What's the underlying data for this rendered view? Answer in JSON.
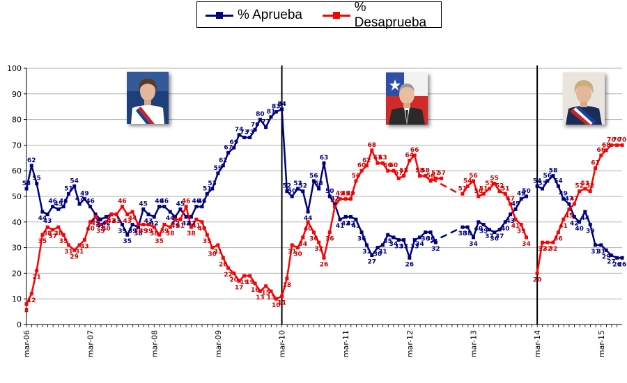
{
  "chart_data": {
    "type": "line",
    "title": "",
    "xlabel": "",
    "ylabel": "",
    "ylim": [
      0,
      100
    ],
    "yticks": [
      0,
      10,
      20,
      30,
      40,
      50,
      60,
      70,
      80,
      90,
      100
    ],
    "x_range": [
      2006.17,
      2015.5
    ],
    "grid": true,
    "legend_position": "top-center",
    "tick_labels": [
      {
        "label": "mar-06",
        "x": 2006.17
      },
      {
        "label": "mar-07",
        "x": 2007.17
      },
      {
        "label": "mar-08",
        "x": 2008.17
      },
      {
        "label": "mar-09",
        "x": 2009.17
      },
      {
        "label": "mar-10",
        "x": 2010.17
      },
      {
        "label": "mar-11",
        "x": 2011.17
      },
      {
        "label": "mar-12",
        "x": 2012.17
      },
      {
        "label": "mar-13",
        "x": 2013.17
      },
      {
        "label": "mar-14",
        "x": 2014.17
      },
      {
        "label": "mar-15",
        "x": 2015.17
      }
    ],
    "period_lines": [
      2010.17,
      2014.17
    ],
    "gap_segments": [
      {
        "series": 0,
        "from": [
          2012.5,
          32
        ],
        "to": [
          2013.0,
          38
        ]
      },
      {
        "series": 1,
        "from": [
          2012.5,
          57
        ],
        "to": [
          2012.95,
          51
        ]
      }
    ],
    "series": [
      {
        "name": "% Aprueba",
        "color": "#000080",
        "label_color": "#000080",
        "segments": [
          [
            [
              2006.17,
              53
            ],
            [
              2006.25,
              62
            ],
            [
              2006.33,
              55
            ],
            [
              2006.42,
              44
            ],
            [
              2006.5,
              43
            ],
            [
              2006.58,
              46
            ],
            [
              2006.67,
              45
            ],
            [
              2006.75,
              46
            ],
            [
              2006.83,
              51
            ],
            [
              2006.92,
              54
            ],
            [
              2007.0,
              47
            ],
            [
              2007.08,
              49
            ],
            [
              2007.17,
              46
            ],
            [
              2007.25,
              43
            ],
            [
              2007.33,
              41
            ],
            [
              2007.42,
              42
            ],
            [
              2007.5,
              43
            ],
            [
              2007.58,
              43
            ],
            [
              2007.67,
              39
            ],
            [
              2007.75,
              35
            ],
            [
              2007.83,
              39
            ],
            [
              2007.92,
              38
            ],
            [
              2008.0,
              45
            ],
            [
              2008.08,
              43
            ],
            [
              2008.17,
              42
            ],
            [
              2008.25,
              46
            ],
            [
              2008.33,
              46
            ],
            [
              2008.42,
              44
            ],
            [
              2008.5,
              42
            ],
            [
              2008.58,
              45
            ],
            [
              2008.67,
              42
            ],
            [
              2008.75,
              42
            ],
            [
              2008.83,
              46
            ],
            [
              2008.92,
              46
            ],
            [
              2009.0,
              51
            ],
            [
              2009.08,
              53
            ],
            [
              2009.17,
              59
            ],
            [
              2009.25,
              62
            ],
            [
              2009.33,
              67
            ],
            [
              2009.42,
              69
            ],
            [
              2009.5,
              74
            ],
            [
              2009.58,
              73
            ],
            [
              2009.67,
              73
            ],
            [
              2009.75,
              76
            ],
            [
              2009.83,
              80
            ],
            [
              2009.92,
              77
            ],
            [
              2010.0,
              81
            ],
            [
              2010.08,
              83
            ],
            [
              2010.17,
              84
            ]
          ],
          [
            [
              2010.17,
              84
            ],
            [
              2010.25,
              52
            ],
            [
              2010.33,
              50
            ],
            [
              2010.42,
              53
            ],
            [
              2010.5,
              52
            ],
            [
              2010.58,
              44
            ],
            [
              2010.67,
              56
            ],
            [
              2010.75,
              53
            ],
            [
              2010.83,
              63
            ],
            [
              2010.92,
              50
            ],
            [
              2011.0,
              47
            ],
            [
              2011.08,
              41
            ],
            [
              2011.17,
              42
            ],
            [
              2011.25,
              42
            ],
            [
              2011.33,
              41
            ],
            [
              2011.42,
              36
            ],
            [
              2011.5,
              31
            ],
            [
              2011.58,
              27
            ],
            [
              2011.67,
              30
            ],
            [
              2011.75,
              31
            ],
            [
              2011.83,
              35
            ],
            [
              2011.92,
              34
            ],
            [
              2012.0,
              33
            ],
            [
              2012.08,
              33
            ],
            [
              2012.17,
              26
            ],
            [
              2012.25,
              33
            ],
            [
              2012.33,
              34
            ],
            [
              2012.42,
              36
            ],
            [
              2012.5,
              36
            ],
            [
              2012.58,
              32
            ]
          ],
          [
            [
              2013.0,
              38
            ],
            [
              2013.08,
              38
            ],
            [
              2013.17,
              34
            ],
            [
              2013.25,
              40
            ],
            [
              2013.33,
              39
            ],
            [
              2013.42,
              37
            ],
            [
              2013.5,
              36
            ],
            [
              2013.58,
              37
            ],
            [
              2013.67,
              40
            ],
            [
              2013.75,
              43
            ],
            [
              2013.83,
              45
            ],
            [
              2013.92,
              49
            ],
            [
              2014.0,
              50
            ]
          ],
          [
            [
              2014.17,
              54
            ],
            [
              2014.25,
              53
            ],
            [
              2014.33,
              56
            ],
            [
              2014.42,
              58
            ],
            [
              2014.5,
              54
            ],
            [
              2014.58,
              49
            ],
            [
              2014.67,
              47
            ],
            [
              2014.75,
              42
            ],
            [
              2014.83,
              40
            ],
            [
              2014.92,
              44
            ],
            [
              2015.0,
              39
            ],
            [
              2015.08,
              31
            ],
            [
              2015.17,
              31
            ],
            [
              2015.25,
              29
            ],
            [
              2015.33,
              27
            ],
            [
              2015.42,
              26
            ],
            [
              2015.5,
              26
            ]
          ]
        ]
      },
      {
        "name": "% Desaprueba",
        "color": "#ff0000",
        "label_color": "#cc0000",
        "segments": [
          [
            [
              2006.17,
              8
            ],
            [
              2006.25,
              12
            ],
            [
              2006.33,
              21
            ],
            [
              2006.42,
              35
            ],
            [
              2006.5,
              38
            ],
            [
              2006.58,
              37
            ],
            [
              2006.67,
              38
            ],
            [
              2006.75,
              35
            ],
            [
              2006.83,
              31
            ],
            [
              2006.92,
              29
            ],
            [
              2007.0,
              31
            ],
            [
              2007.08,
              33
            ],
            [
              2007.17,
              40
            ],
            [
              2007.25,
              42
            ],
            [
              2007.33,
              39
            ],
            [
              2007.42,
              40
            ],
            [
              2007.5,
              43
            ],
            [
              2007.58,
              43
            ],
            [
              2007.67,
              46
            ],
            [
              2007.75,
              43
            ],
            [
              2007.83,
              44
            ],
            [
              2007.92,
              39
            ],
            [
              2008.0,
              39
            ],
            [
              2008.08,
              39
            ],
            [
              2008.17,
              38
            ],
            [
              2008.25,
              35
            ],
            [
              2008.33,
              39
            ],
            [
              2008.42,
              38
            ],
            [
              2008.5,
              41
            ],
            [
              2008.58,
              41
            ],
            [
              2008.67,
              46
            ],
            [
              2008.75,
              38
            ],
            [
              2008.83,
              41
            ],
            [
              2008.92,
              40
            ],
            [
              2009.0,
              35
            ],
            [
              2009.08,
              30
            ],
            [
              2009.17,
              31
            ],
            [
              2009.25,
              26
            ],
            [
              2009.33,
              22
            ],
            [
              2009.42,
              20
            ],
            [
              2009.5,
              17
            ],
            [
              2009.58,
              19
            ],
            [
              2009.67,
              19
            ],
            [
              2009.75,
              16
            ],
            [
              2009.83,
              13
            ],
            [
              2009.92,
              15
            ],
            [
              2010.0,
              13
            ],
            [
              2010.08,
              10
            ],
            [
              2010.17,
              11
            ]
          ],
          [
            [
              2010.17,
              11
            ],
            [
              2010.25,
              18
            ],
            [
              2010.33,
              31
            ],
            [
              2010.42,
              30
            ],
            [
              2010.5,
              34
            ],
            [
              2010.58,
              40
            ],
            [
              2010.67,
              36
            ],
            [
              2010.75,
              32
            ],
            [
              2010.83,
              26
            ],
            [
              2010.92,
              36
            ],
            [
              2011.0,
              46
            ],
            [
              2011.08,
              49
            ],
            [
              2011.17,
              49
            ],
            [
              2011.25,
              49
            ],
            [
              2011.33,
              56
            ],
            [
              2011.42,
              60
            ],
            [
              2011.5,
              62
            ],
            [
              2011.58,
              68
            ],
            [
              2011.67,
              63
            ],
            [
              2011.75,
              63
            ],
            [
              2011.83,
              60
            ],
            [
              2011.92,
              60
            ],
            [
              2012.0,
              57
            ],
            [
              2012.08,
              58
            ],
            [
              2012.17,
              64
            ],
            [
              2012.25,
              66
            ],
            [
              2012.33,
              58
            ],
            [
              2012.42,
              58
            ],
            [
              2012.5,
              56
            ],
            [
              2012.58,
              57
            ],
            [
              2012.67,
              57
            ]
          ],
          [
            [
              2013.0,
              51
            ],
            [
              2013.08,
              54
            ],
            [
              2013.17,
              56
            ],
            [
              2013.25,
              50
            ],
            [
              2013.33,
              51
            ],
            [
              2013.42,
              53
            ],
            [
              2013.5,
              55
            ],
            [
              2013.58,
              52
            ],
            [
              2013.67,
              51
            ],
            [
              2013.75,
              47
            ],
            [
              2013.83,
              41
            ],
            [
              2013.92,
              39
            ],
            [
              2014.0,
              34
            ]
          ],
          [
            [
              2014.17,
              20
            ],
            [
              2014.25,
              32
            ],
            [
              2014.33,
              32
            ],
            [
              2014.42,
              32
            ],
            [
              2014.5,
              36
            ],
            [
              2014.58,
              41
            ],
            [
              2014.67,
              45
            ],
            [
              2014.75,
              47
            ],
            [
              2014.83,
              52
            ],
            [
              2014.92,
              53
            ],
            [
              2015.0,
              52
            ],
            [
              2015.08,
              61
            ],
            [
              2015.17,
              66
            ],
            [
              2015.25,
              68
            ],
            [
              2015.33,
              70
            ],
            [
              2015.42,
              70
            ],
            [
              2015.5,
              70
            ]
          ]
        ]
      }
    ]
  },
  "portraits": [
    "portrait-bachelet-2006",
    "portrait-pinera-2010",
    "portrait-bachelet-2014"
  ]
}
